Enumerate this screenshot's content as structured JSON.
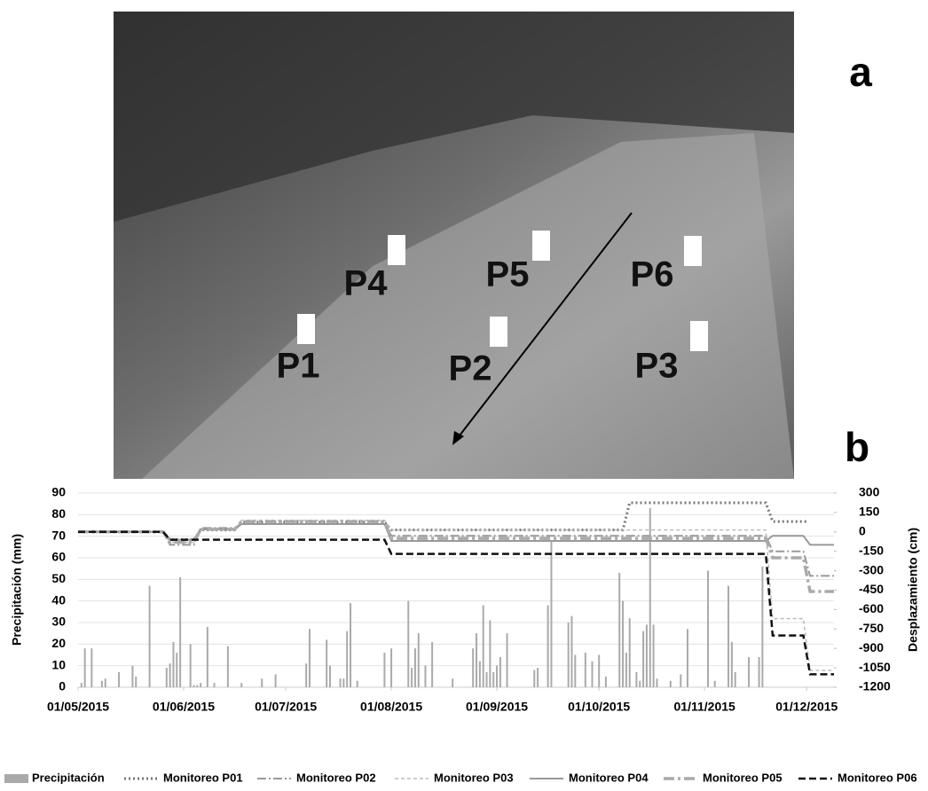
{
  "photo": {
    "panel_label": "a",
    "points": [
      "P1",
      "P2",
      "P3",
      "P4",
      "P5",
      "P6"
    ]
  },
  "chart_data": {
    "type": "bar",
    "panel_label": "b",
    "y_label": "Precipitación (mm)",
    "y2_label": "Desplazamiento (cm)",
    "xlim": [
      "01/05/2015",
      "09/12/2015"
    ],
    "xticks": [
      "01/05/2015",
      "01/06/2015",
      "01/07/2015",
      "01/08/2015",
      "01/09/2015",
      "01/10/2015",
      "01/11/2015",
      "01/12/2015"
    ],
    "ylim": [
      0,
      90
    ],
    "yticks": [
      0,
      10,
      20,
      30,
      40,
      50,
      60,
      70,
      80,
      90
    ],
    "y2lim": [
      -1200,
      300
    ],
    "y2ticks": [
      300,
      150,
      0,
      -150,
      -300,
      -450,
      -600,
      -750,
      -900,
      -1050,
      -1200
    ],
    "grid": true,
    "series": [
      {
        "name": "Precipitación",
        "color": "#aaaaaa",
        "style": "bar",
        "x": [
          "02/05/2015",
          "03/05/2015",
          "05/05/2015",
          "08/05/2015",
          "09/05/2015",
          "13/05/2015",
          "17/05/2015",
          "18/05/2015",
          "22/05/2015",
          "27/05/2015",
          "28/05/2015",
          "29/05/2015",
          "30/05/2015",
          "31/05/2015",
          "03/06/2015",
          "04/06/2015",
          "05/06/2015",
          "06/06/2015",
          "08/06/2015",
          "10/06/2015",
          "14/06/2015",
          "18/06/2015",
          "24/06/2015",
          "28/06/2015",
          "07/07/2015",
          "08/07/2015",
          "13/07/2015",
          "14/07/2015",
          "17/07/2015",
          "18/07/2015",
          "19/07/2015",
          "20/07/2015",
          "22/07/2015",
          "30/07/2015",
          "01/08/2015",
          "06/08/2015",
          "07/08/2015",
          "08/08/2015",
          "09/08/2015",
          "11/08/2015",
          "13/08/2015",
          "19/08/2015",
          "25/08/2015",
          "26/08/2015",
          "27/08/2015",
          "28/08/2015",
          "29/08/2015",
          "30/08/2015",
          "31/08/2015",
          "01/09/2015",
          "02/09/2015",
          "04/09/2015",
          "12/09/2015",
          "13/09/2015",
          "16/09/2015",
          "17/09/2015",
          "22/09/2015",
          "23/09/2015",
          "24/09/2015",
          "27/09/2015",
          "29/09/2015",
          "01/10/2015",
          "03/10/2015",
          "07/10/2015",
          "08/10/2015",
          "09/10/2015",
          "10/10/2015",
          "12/10/2015",
          "13/10/2015",
          "14/10/2015",
          "15/10/2015",
          "16/10/2015",
          "17/10/2015",
          "18/10/2015",
          "22/10/2015",
          "25/10/2015",
          "27/10/2015",
          "02/11/2015",
          "04/11/2015",
          "08/11/2015",
          "09/11/2015",
          "10/11/2015",
          "14/11/2015",
          "17/11/2015",
          "18/11/2015"
        ],
        "values": [
          2,
          18,
          18,
          3,
          4,
          7,
          10,
          5,
          47,
          9,
          11,
          21,
          16,
          51,
          20,
          1,
          1,
          2,
          28,
          2,
          19,
          2,
          4,
          6,
          11,
          27,
          22,
          10,
          4,
          4,
          26,
          39,
          3,
          16,
          18,
          40,
          9,
          18,
          25,
          10,
          21,
          4,
          18,
          25,
          12,
          38,
          7,
          31,
          7,
          10,
          14,
          25,
          8,
          9,
          38,
          68,
          30,
          33,
          15,
          16,
          12,
          15,
          5,
          53,
          40,
          16,
          32,
          7,
          3,
          26,
          29,
          83,
          29,
          4,
          3,
          6,
          27,
          54,
          3,
          47,
          21,
          7,
          14,
          14,
          56
        ]
      },
      {
        "name": "Monitoreo P01",
        "color": "#777777",
        "style": "dotted",
        "axis": "y2",
        "x": [
          "01/05/2015",
          "26/05/2015",
          "28/05/2015",
          "04/06/2015",
          "06/06/2015",
          "16/06/2015",
          "18/06/2015",
          "30/07/2015",
          "01/08/2015",
          "08/10/2015",
          "10/10/2015",
          "19/11/2015",
          "21/11/2015",
          "01/12/2015"
        ],
        "values": [
          0,
          0,
          -60,
          -60,
          15,
          15,
          75,
          75,
          15,
          15,
          225,
          225,
          80,
          80
        ]
      },
      {
        "name": "Monitoreo P02",
        "color": "#999999",
        "style": "dashdot",
        "axis": "y2",
        "x": [
          "01/05/2015",
          "26/05/2015",
          "28/05/2015",
          "04/06/2015",
          "06/06/2015",
          "16/06/2015",
          "18/06/2015",
          "30/07/2015",
          "01/08/2015",
          "19/11/2015",
          "21/11/2015",
          "30/11/2015",
          "02/12/2015",
          "09/12/2015"
        ],
        "values": [
          0,
          0,
          -100,
          -100,
          30,
          30,
          60,
          60,
          -30,
          -30,
          -150,
          -150,
          -340,
          -340
        ]
      },
      {
        "name": "Monitoreo P03",
        "color": "#bbbbbb",
        "style": "dashed",
        "axis": "y2",
        "x": [
          "01/05/2015",
          "26/05/2015",
          "28/05/2015",
          "04/06/2015",
          "06/06/2015",
          "16/06/2015",
          "18/06/2015",
          "30/07/2015",
          "01/08/2015",
          "19/11/2015",
          "21/11/2015",
          "30/11/2015",
          "02/12/2015",
          "09/12/2015"
        ],
        "values": [
          0,
          0,
          -80,
          -80,
          15,
          15,
          90,
          90,
          15,
          15,
          -670,
          -670,
          -1070,
          -1070
        ]
      },
      {
        "name": "Monitoreo P04",
        "color": "#999999",
        "style": "solid",
        "axis": "y2",
        "x": [
          "01/05/2015",
          "26/05/2015",
          "28/05/2015",
          "04/06/2015",
          "06/06/2015",
          "16/06/2015",
          "18/06/2015",
          "30/07/2015",
          "01/08/2015",
          "19/11/2015",
          "21/11/2015",
          "30/11/2015",
          "02/12/2015",
          "09/12/2015"
        ],
        "values": [
          0,
          0,
          -60,
          -60,
          20,
          20,
          60,
          60,
          -70,
          -70,
          -30,
          -30,
          -100,
          -100
        ]
      },
      {
        "name": "Monitoreo P05",
        "color": "#aaaaaa",
        "style": "thickdashdot",
        "axis": "y2",
        "x": [
          "01/05/2015",
          "26/05/2015",
          "28/05/2015",
          "04/06/2015",
          "06/06/2015",
          "16/06/2015",
          "18/06/2015",
          "30/07/2015",
          "01/08/2015",
          "19/11/2015",
          "21/11/2015",
          "30/11/2015",
          "02/12/2015",
          "09/12/2015"
        ],
        "values": [
          0,
          0,
          -80,
          -80,
          20,
          20,
          80,
          80,
          -50,
          -50,
          -200,
          -200,
          -460,
          -460
        ]
      },
      {
        "name": "Monitoreo P06",
        "color": "#111111",
        "style": "longdash",
        "axis": "y2",
        "x": [
          "01/05/2015",
          "26/05/2015",
          "28/05/2015",
          "30/07/2015",
          "01/08/2015",
          "19/11/2015",
          "21/11/2015",
          "30/11/2015",
          "02/12/2015",
          "09/12/2015"
        ],
        "values": [
          0,
          0,
          -60,
          -60,
          -170,
          -170,
          -800,
          -800,
          -1100,
          -1100
        ]
      }
    ]
  }
}
